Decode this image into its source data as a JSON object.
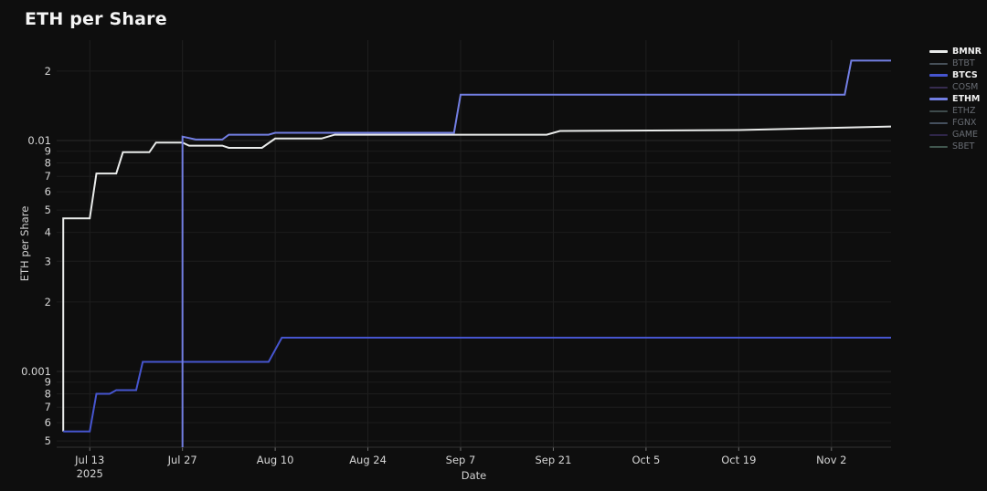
{
  "title": "ETH per Share",
  "colors": {
    "background": "#0e0e0e",
    "grid_minor": "#1d1d1d",
    "grid_major": "#292929",
    "grid_vertical": "#202020",
    "axis_line": "#333333",
    "tick_mark": "#6f6f6f",
    "tick_label": "#d6d6d6",
    "axis_title": "#cfcfcf",
    "legend_active_text": "#f2f2f2",
    "legend_inactive_text": "#686c73"
  },
  "chart_data": {
    "type": "line",
    "title": "ETH per Share",
    "xlabel": "Date",
    "ylabel": "ETH per Share",
    "yscale": "log",
    "grid": true,
    "legend_position": "right",
    "x_range": [
      "2025-07-08",
      "2025-11-11"
    ],
    "ylim": [
      0.00047,
      0.027
    ],
    "x_ticks": [
      {
        "date": "2025-07-13",
        "label": "Jul 13",
        "sublabel": "2025"
      },
      {
        "date": "2025-07-27",
        "label": "Jul 27",
        "sublabel": ""
      },
      {
        "date": "2025-08-10",
        "label": "Aug 10",
        "sublabel": ""
      },
      {
        "date": "2025-08-24",
        "label": "Aug 24",
        "sublabel": ""
      },
      {
        "date": "2025-09-07",
        "label": "Sep 7",
        "sublabel": ""
      },
      {
        "date": "2025-09-21",
        "label": "Sep 21",
        "sublabel": ""
      },
      {
        "date": "2025-10-05",
        "label": "Oct 5",
        "sublabel": ""
      },
      {
        "date": "2025-10-19",
        "label": "Oct 19",
        "sublabel": ""
      },
      {
        "date": "2025-11-02",
        "label": "Nov 2",
        "sublabel": ""
      }
    ],
    "y_ticks": [
      {
        "value": 0.02,
        "label": "2",
        "major": false
      },
      {
        "value": 0.01,
        "label": "0.01",
        "major": true
      },
      {
        "value": 0.009,
        "label": "9",
        "major": false
      },
      {
        "value": 0.008,
        "label": "8",
        "major": false
      },
      {
        "value": 0.007,
        "label": "7",
        "major": false
      },
      {
        "value": 0.006,
        "label": "6",
        "major": false
      },
      {
        "value": 0.005,
        "label": "5",
        "major": false
      },
      {
        "value": 0.004,
        "label": "4",
        "major": false
      },
      {
        "value": 0.003,
        "label": "3",
        "major": false
      },
      {
        "value": 0.002,
        "label": "2",
        "major": false
      },
      {
        "value": 0.001,
        "label": "0.001",
        "major": true
      },
      {
        "value": 0.0009,
        "label": "9",
        "major": false
      },
      {
        "value": 0.0008,
        "label": "8",
        "major": false
      },
      {
        "value": 0.0007,
        "label": "7",
        "major": false
      },
      {
        "value": 0.0006,
        "label": "6",
        "major": false
      },
      {
        "value": 0.0005,
        "label": "5",
        "major": false
      }
    ],
    "series": [
      {
        "name": "BMNR",
        "color": "#e9ebea",
        "width": 2,
        "points": [
          [
            "2025-07-09",
            0.00055
          ],
          [
            "2025-07-09",
            0.0046
          ],
          [
            "2025-07-13",
            0.0046
          ],
          [
            "2025-07-14",
            0.0072
          ],
          [
            "2025-07-17",
            0.0072
          ],
          [
            "2025-07-18",
            0.0089
          ],
          [
            "2025-07-22",
            0.0089
          ],
          [
            "2025-07-23",
            0.0098
          ],
          [
            "2025-07-27",
            0.0098
          ],
          [
            "2025-07-28",
            0.0095
          ],
          [
            "2025-08-02",
            0.0095
          ],
          [
            "2025-08-03",
            0.0093
          ],
          [
            "2025-08-08",
            0.0093
          ],
          [
            "2025-08-10",
            0.0102
          ],
          [
            "2025-08-17",
            0.0102
          ],
          [
            "2025-08-19",
            0.0106
          ],
          [
            "2025-09-20",
            0.0106
          ],
          [
            "2025-09-22",
            0.011
          ],
          [
            "2025-10-19",
            0.0111
          ],
          [
            "2025-11-11",
            0.0115
          ]
        ]
      },
      {
        "name": "BTCS",
        "color": "#4655cf",
        "width": 2,
        "points": [
          [
            "2025-07-09",
            0.00055
          ],
          [
            "2025-07-13",
            0.00055
          ],
          [
            "2025-07-14",
            0.0008
          ],
          [
            "2025-07-16",
            0.0008
          ],
          [
            "2025-07-17",
            0.00083
          ],
          [
            "2025-07-20",
            0.00083
          ],
          [
            "2025-07-21",
            0.0011
          ],
          [
            "2025-08-09",
            0.0011
          ],
          [
            "2025-08-11",
            0.0014
          ],
          [
            "2025-11-11",
            0.0014
          ]
        ]
      },
      {
        "name": "ETHM",
        "color": "#727ee2",
        "width": 2,
        "points": [
          [
            "2025-07-27",
            0.00047
          ],
          [
            "2025-07-27",
            0.0104
          ],
          [
            "2025-07-29",
            0.0101
          ],
          [
            "2025-08-02",
            0.0101
          ],
          [
            "2025-08-03",
            0.0106
          ],
          [
            "2025-08-09",
            0.0106
          ],
          [
            "2025-08-10",
            0.0108
          ],
          [
            "2025-09-06",
            0.0108
          ],
          [
            "2025-09-07",
            0.0158
          ],
          [
            "2025-11-04",
            0.0158
          ],
          [
            "2025-11-05",
            0.0222
          ],
          [
            "2025-11-11",
            0.0222
          ]
        ]
      }
    ],
    "legend": [
      {
        "label": "BMNR",
        "color": "#e9ebea",
        "active": true
      },
      {
        "label": "BTBT",
        "color": "#475059",
        "active": false
      },
      {
        "label": "BTCS",
        "color": "#4655cf",
        "active": true
      },
      {
        "label": "COSM",
        "color": "#372c50",
        "active": false
      },
      {
        "label": "ETHM",
        "color": "#727ee2",
        "active": true
      },
      {
        "label": "ETHZ",
        "color": "#3e4b4c",
        "active": false
      },
      {
        "label": "FGNX",
        "color": "#45505e",
        "active": false
      },
      {
        "label": "GAME",
        "color": "#2f2649",
        "active": false
      },
      {
        "label": "SBET",
        "color": "#41574f",
        "active": false
      }
    ]
  }
}
